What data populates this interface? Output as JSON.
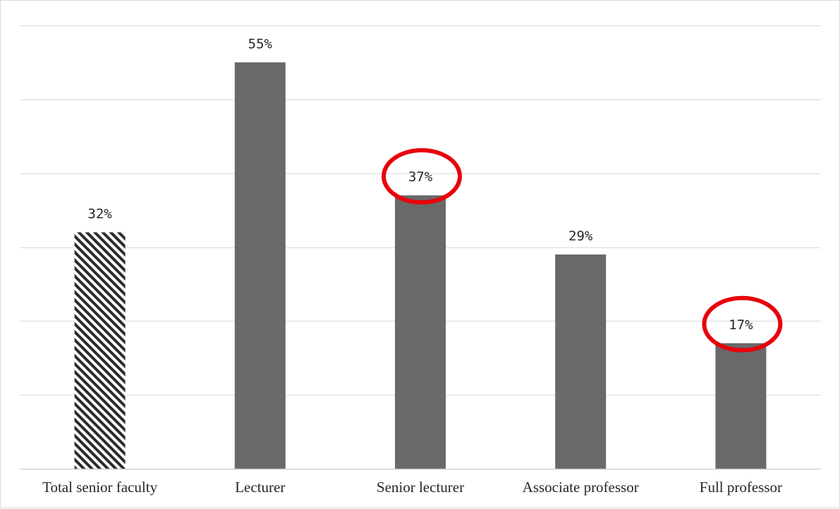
{
  "chart_data": {
    "type": "bar",
    "title": "",
    "xlabel": "",
    "ylabel": "",
    "categories": [
      "Total senior faculty",
      "Lecturer",
      "Senior lecturer",
      "Associate professor",
      "Full professor"
    ],
    "values": [
      32,
      55,
      37,
      29,
      17
    ],
    "value_labels": [
      "32%",
      "55%",
      "37%",
      "29%",
      "17%"
    ],
    "ylim": [
      0,
      60
    ],
    "grid": true,
    "legend": "none",
    "bar_fills": [
      "hatched",
      "solid",
      "solid",
      "solid",
      "solid"
    ],
    "highlighted_categories": [
      "Senior lecturer",
      "Full professor"
    ]
  },
  "colors": {
    "bar": "#696969",
    "hatch": "#2b2b2b",
    "highlight": "#e8000b",
    "gridline": "#d9d9d9"
  }
}
